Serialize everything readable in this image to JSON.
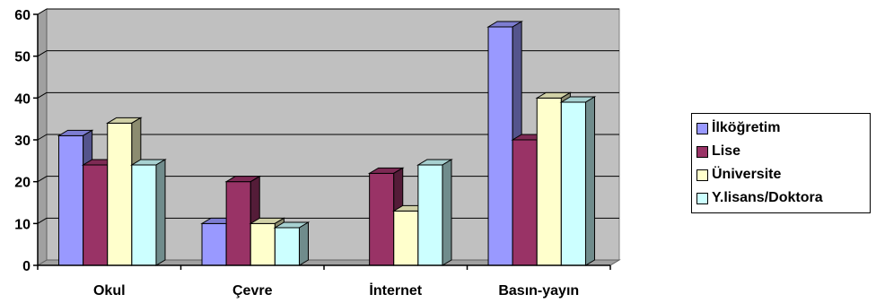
{
  "chart_data": {
    "type": "bar",
    "categories": [
      "Okul",
      "Çevre",
      "İnternet",
      "Basın-yayın"
    ],
    "series": [
      {
        "name": "İlköğretim",
        "values": [
          31,
          10,
          0,
          57
        ],
        "color": "#9999FF"
      },
      {
        "name": "Lise",
        "values": [
          24,
          20,
          22,
          30
        ],
        "color": "#993366"
      },
      {
        "name": "Üniversite",
        "values": [
          34,
          10,
          13,
          40
        ],
        "color": "#FFFFCC"
      },
      {
        "name": "Y.lisans/Doktora",
        "values": [
          24,
          9,
          24,
          39
        ],
        "color": "#CCFFFF"
      }
    ],
    "yticks": [
      "0",
      "10",
      "20",
      "30",
      "40",
      "50",
      "60"
    ],
    "ylim": [
      0,
      60
    ],
    "grid": true,
    "legend_position": "right",
    "plot_background": "#C0C0C0"
  }
}
